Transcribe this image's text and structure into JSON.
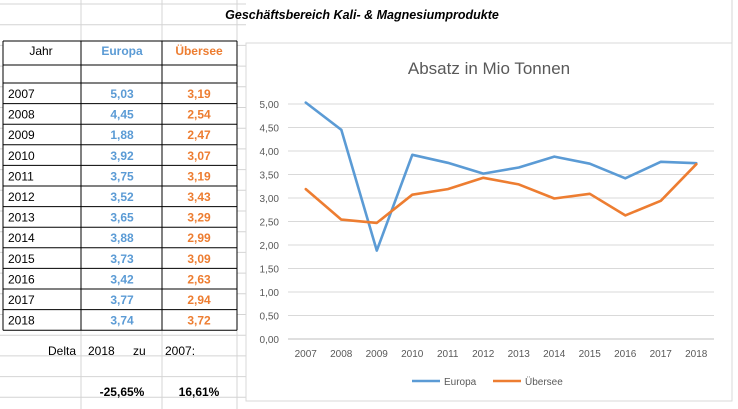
{
  "sheet": {
    "title": "Geschäftsbereich Kali- & Magnesiumprodukte",
    "col_year": "Jahr",
    "col_europa": "Europa",
    "col_uebersee": "Übersee",
    "delta": {
      "label": "Delta",
      "from": "2018",
      "zu": "zu",
      "to": "2007:",
      "europa": "-25,65%",
      "uebersee": "16,61%"
    }
  },
  "table": {
    "rows": [
      {
        "year": "2007",
        "europa": "5,03",
        "uebersee": "3,19"
      },
      {
        "year": "2008",
        "europa": "4,45",
        "uebersee": "2,54"
      },
      {
        "year": "2009",
        "europa": "1,88",
        "uebersee": "2,47"
      },
      {
        "year": "2010",
        "europa": "3,92",
        "uebersee": "3,07"
      },
      {
        "year": "2011",
        "europa": "3,75",
        "uebersee": "3,19"
      },
      {
        "year": "2012",
        "europa": "3,52",
        "uebersee": "3,43"
      },
      {
        "year": "2013",
        "europa": "3,65",
        "uebersee": "3,29"
      },
      {
        "year": "2014",
        "europa": "3,88",
        "uebersee": "2,99"
      },
      {
        "year": "2015",
        "europa": "3,73",
        "uebersee": "3,09"
      },
      {
        "year": "2016",
        "europa": "3,42",
        "uebersee": "2,63"
      },
      {
        "year": "2017",
        "europa": "3,77",
        "uebersee": "2,94"
      },
      {
        "year": "2018",
        "europa": "3,74",
        "uebersee": "3,72"
      }
    ]
  },
  "colors": {
    "europa": "#5b9bd5",
    "uebersee": "#ed7d31",
    "grid": "#d9d9d9",
    "cellgrid": "#d4d4d4"
  },
  "chart_data": {
    "type": "line",
    "title": "Absatz in Mio Tonnen",
    "x": [
      "2007",
      "2008",
      "2009",
      "2010",
      "2011",
      "2012",
      "2013",
      "2014",
      "2015",
      "2016",
      "2017",
      "2018"
    ],
    "series": [
      {
        "name": "Europa",
        "values": [
          5.03,
          4.45,
          1.88,
          3.92,
          3.75,
          3.52,
          3.65,
          3.88,
          3.73,
          3.42,
          3.77,
          3.74
        ]
      },
      {
        "name": "Übersee",
        "values": [
          3.19,
          2.54,
          2.47,
          3.07,
          3.19,
          3.43,
          3.29,
          2.99,
          3.09,
          2.63,
          2.94,
          3.72
        ]
      }
    ],
    "ylim": [
      0,
      5
    ],
    "yticks": [
      "0,00",
      "0,50",
      "1,00",
      "1,50",
      "2,00",
      "2,50",
      "3,00",
      "3,50",
      "4,00",
      "4,50",
      "5,00"
    ],
    "grid": true,
    "legend": "bottom"
  }
}
